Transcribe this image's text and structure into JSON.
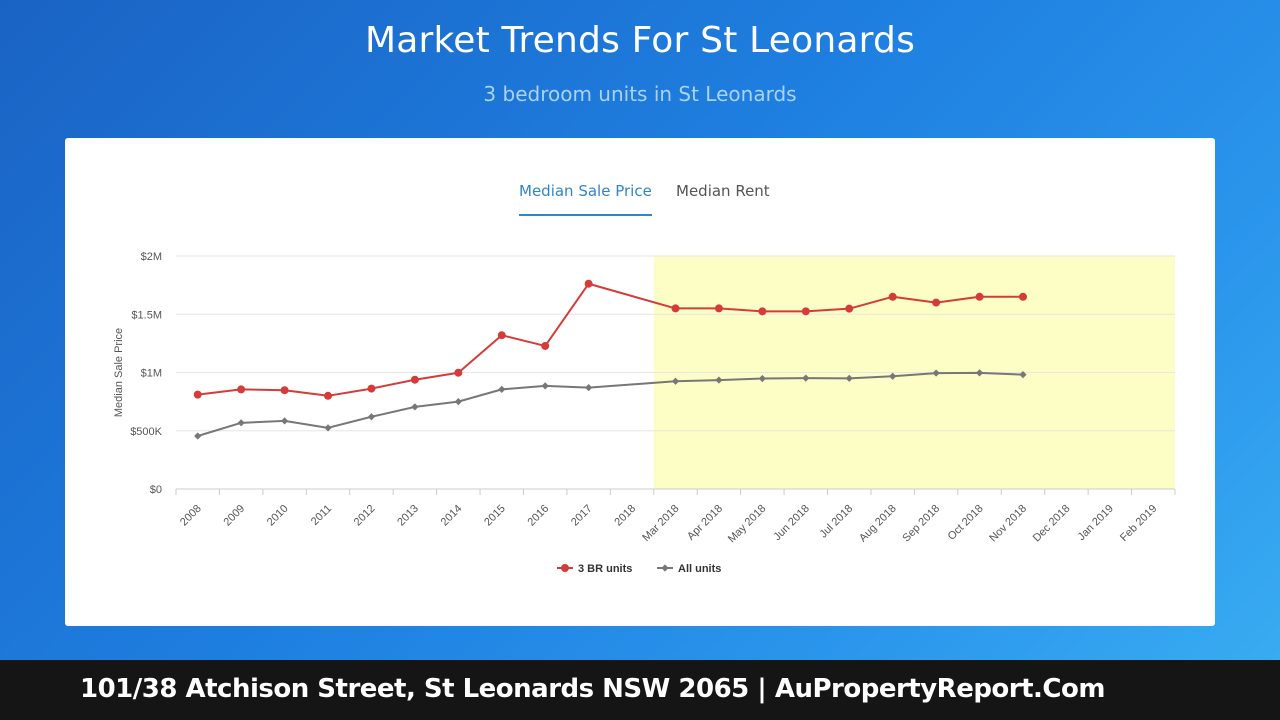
{
  "header": {
    "title": "Market Trends For St Leonards",
    "subtitle": "3 bedroom units in St Leonards"
  },
  "tabs": {
    "active_label": "Median Sale Price",
    "inactive_label": "Median Rent"
  },
  "footer": {
    "text": "101/38 Atchison Street, St Leonards NSW 2065 | AuPropertyReport.Com"
  },
  "colors": {
    "three_br": "#d63b3b",
    "all_units": "#777777",
    "highlight": "#fdfdc6"
  },
  "chart_data": {
    "type": "line",
    "title": "",
    "xlabel": "",
    "ylabel": "Median Sale Price",
    "categories": [
      "2008",
      "2009",
      "2010",
      "2011",
      "2012",
      "2013",
      "2014",
      "2015",
      "2016",
      "2017",
      "2018",
      "Mar 2018",
      "Apr 2018",
      "May 2018",
      "Jun 2018",
      "Jul 2018",
      "Aug 2018",
      "Sep 2018",
      "Oct 2018",
      "Nov 2018",
      "Dec 2018",
      "Jan 2019",
      "Feb 2019"
    ],
    "y_ticks": [
      {
        "value": 0,
        "label": "$0"
      },
      {
        "value": 500000,
        "label": "$500K"
      },
      {
        "value": 1000000,
        "label": "$1M"
      },
      {
        "value": 1500000,
        "label": "$1.5M"
      },
      {
        "value": 2000000,
        "label": "$2M"
      }
    ],
    "ylim": [
      0,
      2000000
    ],
    "highlight_range": [
      "Mar 2018",
      "Feb 2019"
    ],
    "legend_position": "bottom-center",
    "series": [
      {
        "name": "3 BR units",
        "marker": "circle",
        "values": [
          810000,
          855000,
          848000,
          800000,
          862000,
          938000,
          998000,
          1320000,
          1228000,
          1762000,
          null,
          1550000,
          1550000,
          1525000,
          1525000,
          1548000,
          1650000,
          1600000,
          1650000,
          1650000,
          null,
          null,
          null
        ]
      },
      {
        "name": "All units",
        "marker": "diamond",
        "values": [
          455000,
          568000,
          585000,
          525000,
          620000,
          705000,
          750000,
          855000,
          885000,
          870000,
          null,
          925000,
          935000,
          948000,
          952000,
          950000,
          968000,
          995000,
          997000,
          982000,
          null,
          null,
          null
        ]
      }
    ]
  }
}
